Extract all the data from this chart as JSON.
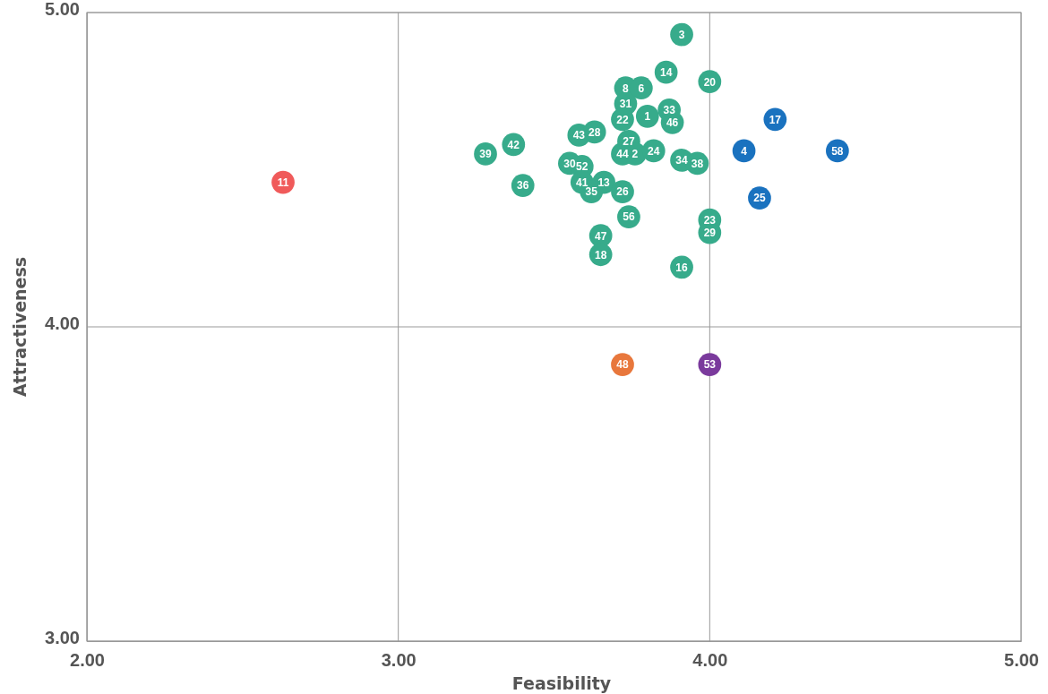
{
  "chart_data": {
    "type": "scatter",
    "xlabel": "Feasibility",
    "ylabel": "Attractiveness",
    "xlim": [
      2,
      5
    ],
    "ylim": [
      3,
      5
    ],
    "xticks": [
      {
        "value": 2,
        "label": "2.00"
      },
      {
        "value": 3,
        "label": "3.00"
      },
      {
        "value": 4,
        "label": "4.00"
      },
      {
        "value": 5,
        "label": "5.00"
      }
    ],
    "yticks": [
      {
        "value": 3,
        "label": "3.00"
      },
      {
        "value": 4,
        "label": "4.00"
      },
      {
        "value": 5,
        "label": "5.00"
      }
    ],
    "grid": true,
    "marker": "circle",
    "series": [
      {
        "color": "#37ab8b",
        "x": [
          3.91,
          3.86,
          4.0,
          3.73,
          3.78,
          3.73,
          3.72,
          3.8,
          3.87,
          3.88,
          3.58,
          3.63,
          3.74,
          3.37,
          3.28,
          3.72,
          3.76,
          3.82,
          3.91,
          3.96,
          3.55,
          3.59,
          3.4,
          3.59,
          3.66,
          3.62,
          3.72,
          3.74,
          4.0,
          4.0,
          3.65,
          3.65,
          3.91
        ],
        "values": [
          4.93,
          4.81,
          4.78,
          4.76,
          4.76,
          4.71,
          4.66,
          4.67,
          4.69,
          4.65,
          4.61,
          4.62,
          4.59,
          4.58,
          4.55,
          4.55,
          4.55,
          4.56,
          4.53,
          4.52,
          4.52,
          4.51,
          4.45,
          4.46,
          4.46,
          4.43,
          4.43,
          4.35,
          4.34,
          4.3,
          4.29,
          4.23,
          4.19
        ]
      },
      {
        "color": "#1a72bf",
        "x": [
          4.21,
          4.11,
          4.41,
          4.16
        ],
        "values": [
          4.66,
          4.56,
          4.56,
          4.41
        ]
      },
      {
        "color": "#f05a5a",
        "x": [
          2.63
        ],
        "values": [
          4.46
        ]
      },
      {
        "color": "#e8773c",
        "x": [
          3.72
        ],
        "values": [
          3.88
        ]
      },
      {
        "color": "#7a3a9c",
        "x": [
          4.0
        ],
        "values": [
          3.88
        ]
      }
    ],
    "annotations": [
      {
        "text": "3",
        "x": 3.91,
        "y": 4.93
      },
      {
        "text": "14",
        "x": 3.86,
        "y": 4.81
      },
      {
        "text": "20",
        "x": 4.0,
        "y": 4.78
      },
      {
        "text": "8",
        "x": 3.73,
        "y": 4.76
      },
      {
        "text": "6",
        "x": 3.78,
        "y": 4.76
      },
      {
        "text": "31",
        "x": 3.73,
        "y": 4.71
      },
      {
        "text": "22",
        "x": 3.72,
        "y": 4.66
      },
      {
        "text": "1",
        "x": 3.8,
        "y": 4.67
      },
      {
        "text": "33",
        "x": 3.87,
        "y": 4.69
      },
      {
        "text": "46",
        "x": 3.88,
        "y": 4.65
      },
      {
        "text": "43",
        "x": 3.58,
        "y": 4.61
      },
      {
        "text": "28",
        "x": 3.63,
        "y": 4.62
      },
      {
        "text": "27",
        "x": 3.74,
        "y": 4.59
      },
      {
        "text": "42",
        "x": 3.37,
        "y": 4.58
      },
      {
        "text": "39",
        "x": 3.28,
        "y": 4.55
      },
      {
        "text": "44",
        "x": 3.72,
        "y": 4.55
      },
      {
        "text": "2",
        "x": 3.76,
        "y": 4.55
      },
      {
        "text": "24",
        "x": 3.82,
        "y": 4.56
      },
      {
        "text": "34",
        "x": 3.91,
        "y": 4.53
      },
      {
        "text": "38",
        "x": 3.96,
        "y": 4.52
      },
      {
        "text": "30",
        "x": 3.55,
        "y": 4.52
      },
      {
        "text": "52",
        "x": 3.59,
        "y": 4.51
      },
      {
        "text": "36",
        "x": 3.4,
        "y": 4.45
      },
      {
        "text": "41",
        "x": 3.59,
        "y": 4.46
      },
      {
        "text": "13",
        "x": 3.66,
        "y": 4.46
      },
      {
        "text": "35",
        "x": 3.62,
        "y": 4.43
      },
      {
        "text": "26",
        "x": 3.72,
        "y": 4.43
      },
      {
        "text": "56",
        "x": 3.74,
        "y": 4.35
      },
      {
        "text": "23",
        "x": 4.0,
        "y": 4.34
      },
      {
        "text": "29",
        "x": 4.0,
        "y": 4.3
      },
      {
        "text": "47",
        "x": 3.65,
        "y": 4.29
      },
      {
        "text": "18",
        "x": 3.65,
        "y": 4.23
      },
      {
        "text": "16",
        "x": 3.91,
        "y": 4.19
      },
      {
        "text": "17",
        "x": 4.21,
        "y": 4.66
      },
      {
        "text": "4",
        "x": 4.11,
        "y": 4.56
      },
      {
        "text": "58",
        "x": 4.41,
        "y": 4.56
      },
      {
        "text": "25",
        "x": 4.16,
        "y": 4.41
      },
      {
        "text": "11",
        "x": 2.63,
        "y": 4.46
      },
      {
        "text": "48",
        "x": 3.72,
        "y": 3.88
      },
      {
        "text": "53",
        "x": 4.0,
        "y": 3.88
      }
    ]
  }
}
